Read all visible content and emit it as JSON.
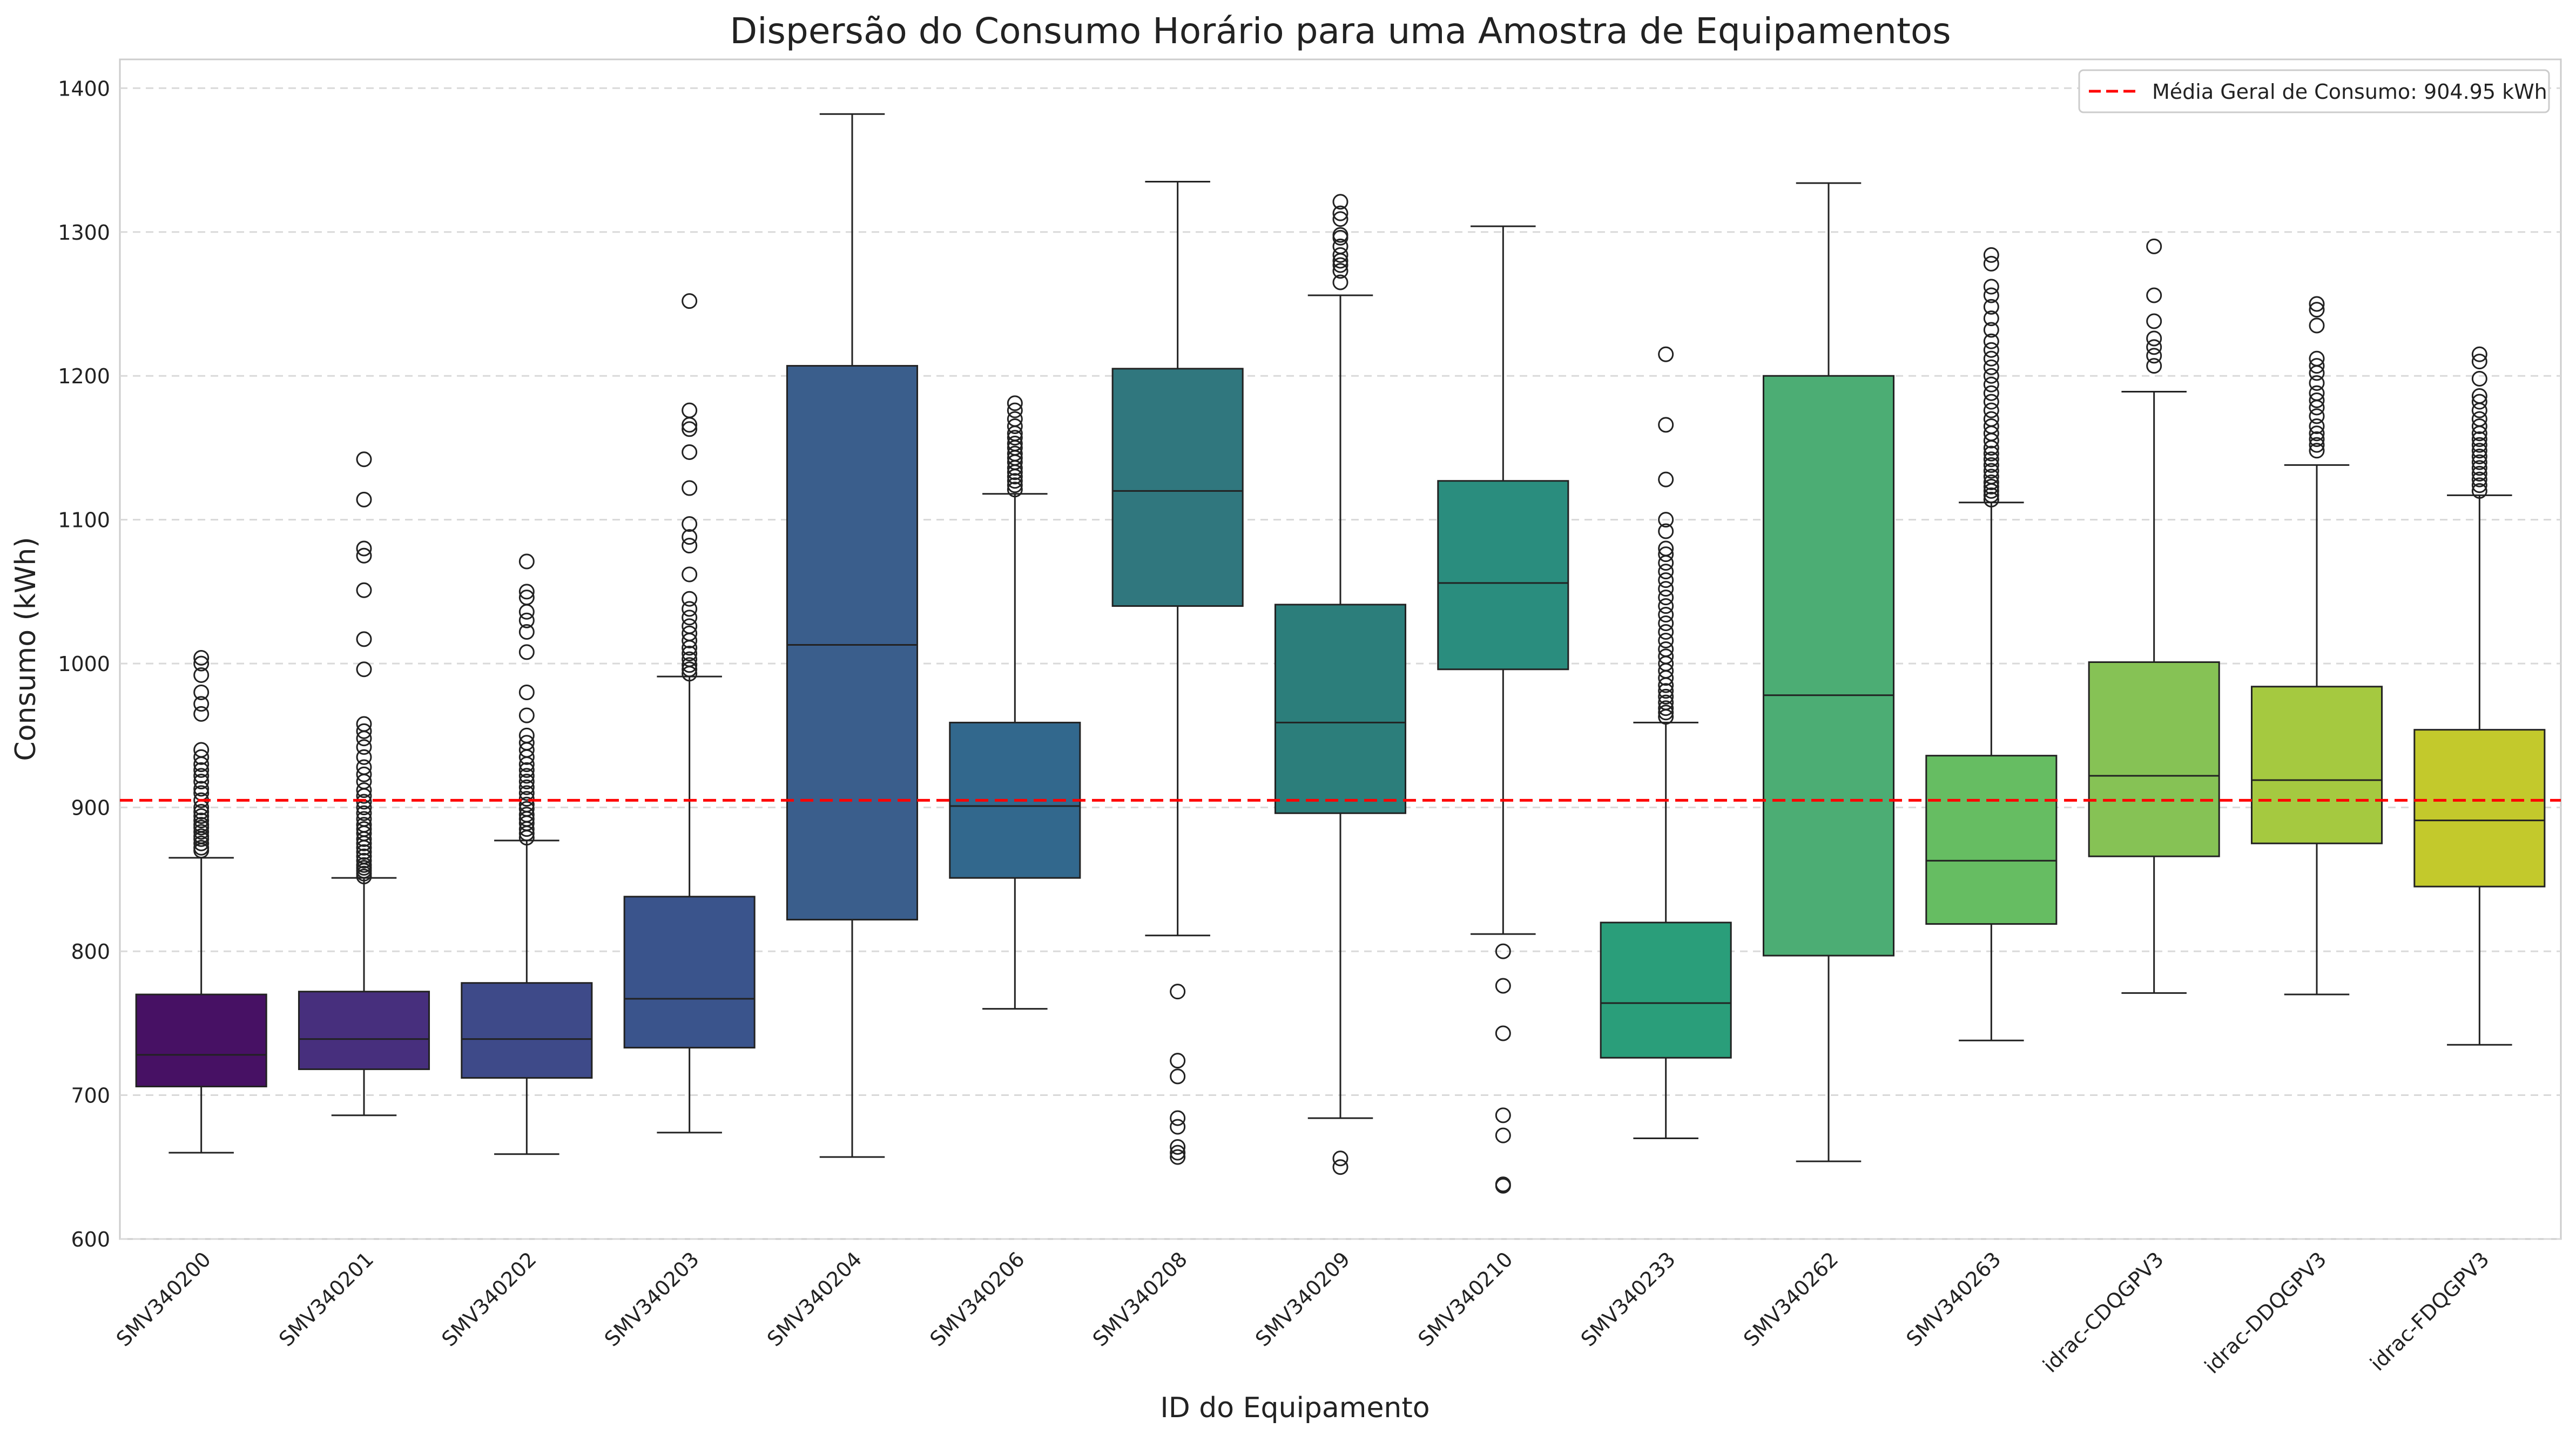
{
  "chart_data": {
    "type": "box",
    "title": "Dispersão do Consumo Horário para uma Amostra de Equipamentos",
    "xlabel": "ID do Equipamento",
    "ylabel": "Consumo (kWh)",
    "ylim": [
      600,
      1420
    ],
    "yticks": [
      600,
      700,
      800,
      900,
      1000,
      1100,
      1200,
      1300,
      1400
    ],
    "grid": "horizontal dashed",
    "legend_position": "top-right",
    "mean_line": {
      "value": 904.95,
      "label": "Média Geral de Consumo: 904.95 kWh",
      "color": "#ff0000",
      "style": "dashed"
    },
    "series": [
      {
        "category": "SMV340200",
        "color": "#471164",
        "whisker_low": 660,
        "q1": 706,
        "median": 728,
        "q3": 770,
        "whisker_high": 865,
        "outliers": [
          870,
          872,
          875,
          878,
          880,
          883,
          886,
          888,
          891,
          894,
          897,
          900,
          905,
          910,
          913,
          918,
          922,
          926,
          930,
          935,
          940,
          965,
          972,
          980,
          992,
          1000,
          1004
        ]
      },
      {
        "category": "SMV340201",
        "color": "#472f7d",
        "whisker_low": 686,
        "q1": 718,
        "median": 739,
        "q3": 772,
        "whisker_high": 851,
        "outliers": [
          852,
          854,
          856,
          858,
          860,
          863,
          866,
          869,
          872,
          875,
          878,
          882,
          885,
          888,
          892,
          896,
          900,
          904,
          908,
          912,
          918,
          923,
          928,
          935,
          942,
          948,
          953,
          958,
          996,
          1017,
          1051,
          1075,
          1080,
          1114,
          1142
        ]
      },
      {
        "category": "SMV340202",
        "color": "#3e4a89",
        "whisker_low": 659,
        "q1": 712,
        "median": 739,
        "q3": 778,
        "whisker_high": 877,
        "outliers": [
          879,
          882,
          885,
          889,
          892,
          895,
          899,
          902,
          906,
          910,
          914,
          918,
          922,
          926,
          930,
          935,
          940,
          945,
          950,
          964,
          980,
          1008,
          1022,
          1030,
          1036,
          1046,
          1050,
          1071
        ]
      },
      {
        "category": "SMV340203",
        "color": "#3a548c",
        "whisker_low": 674,
        "q1": 733,
        "median": 767,
        "q3": 838,
        "whisker_high": 991,
        "outliers": [
          993,
          996,
          999,
          1003,
          1007,
          1011,
          1016,
          1021,
          1026,
          1032,
          1038,
          1045,
          1062,
          1082,
          1088,
          1097,
          1122,
          1147,
          1163,
          1166,
          1176,
          1252
        ]
      },
      {
        "category": "SMV340204",
        "color": "#3a5e8c",
        "whisker_low": 657,
        "q1": 822,
        "median": 1013,
        "q3": 1207,
        "whisker_high": 1382,
        "outliers": []
      },
      {
        "category": "SMV340206",
        "color": "#32688d",
        "whisker_low": 760,
        "q1": 851,
        "median": 901,
        "q3": 959,
        "whisker_high": 1118,
        "outliers": [
          1121,
          1124,
          1127,
          1130,
          1133,
          1136,
          1140,
          1143,
          1146,
          1150,
          1153,
          1157,
          1160,
          1165,
          1170,
          1176,
          1181
        ]
      },
      {
        "category": "SMV340208",
        "color": "#30777e",
        "whisker_low": 811,
        "q1": 1040,
        "median": 1120,
        "q3": 1205,
        "whisker_high": 1335,
        "outliers": [
          657,
          660,
          664,
          678,
          684,
          713,
          724,
          772
        ]
      },
      {
        "category": "SMV340209",
        "color": "#2c7e7b",
        "whisker_low": 684,
        "q1": 896,
        "median": 959,
        "q3": 1041,
        "whisker_high": 1256,
        "outliers": [
          650,
          656,
          1265,
          1273,
          1277,
          1280,
          1284,
          1290,
          1296,
          1298,
          1309,
          1313,
          1321
        ]
      },
      {
        "category": "SMV340210",
        "color": "#2a8d7e",
        "whisker_low": 812,
        "q1": 996,
        "median": 1056,
        "q3": 1127,
        "whisker_high": 1304,
        "outliers": [
          637,
          638,
          672,
          686,
          743,
          776,
          800
        ]
      },
      {
        "category": "SMV340233",
        "color": "#2a9e7a",
        "whisker_low": 670,
        "q1": 726,
        "median": 764,
        "q3": 820,
        "whisker_high": 959,
        "outliers": [
          963,
          966,
          969,
          973,
          977,
          981,
          985,
          990,
          995,
          1000,
          1005,
          1010,
          1016,
          1022,
          1028,
          1034,
          1040,
          1046,
          1052,
          1058,
          1064,
          1070,
          1076,
          1080,
          1092,
          1100,
          1128,
          1166,
          1215
        ]
      },
      {
        "category": "SMV340262",
        "color": "#4cad74",
        "whisker_low": 654,
        "q1": 797,
        "median": 978,
        "q3": 1200,
        "whisker_high": 1334,
        "outliers": []
      },
      {
        "category": "SMV340263",
        "color": "#66bd62",
        "whisker_low": 738,
        "q1": 819,
        "median": 863,
        "q3": 936,
        "whisker_high": 1112,
        "outliers": [
          1114,
          1117,
          1120,
          1123,
          1126,
          1130,
          1134,
          1138,
          1142,
          1146,
          1150,
          1155,
          1160,
          1165,
          1170,
          1176,
          1182,
          1188,
          1194,
          1200,
          1206,
          1212,
          1218,
          1224,
          1232,
          1240,
          1248,
          1256,
          1262,
          1278,
          1284
        ]
      },
      {
        "category": "idrac-CDQGPV3",
        "color": "#86c255",
        "whisker_low": 771,
        "q1": 866,
        "median": 922,
        "q3": 1001,
        "whisker_high": 1189,
        "outliers": [
          1207,
          1214,
          1220,
          1226,
          1238,
          1256,
          1290
        ]
      },
      {
        "category": "idrac-DDQGPV3",
        "color": "#a5c940",
        "whisker_low": 770,
        "q1": 875,
        "median": 919,
        "q3": 984,
        "whisker_high": 1138,
        "outliers": [
          1148,
          1152,
          1156,
          1160,
          1165,
          1172,
          1178,
          1183,
          1188,
          1195,
          1202,
          1207,
          1212,
          1235,
          1246,
          1250
        ]
      },
      {
        "category": "idrac-FDQGPV3",
        "color": "#c3c92c",
        "whisker_low": 735,
        "q1": 845,
        "median": 891,
        "q3": 954,
        "whisker_high": 1117,
        "outliers": [
          1120,
          1124,
          1128,
          1132,
          1136,
          1140,
          1144,
          1148,
          1152,
          1156,
          1160,
          1165,
          1170,
          1176,
          1182,
          1186,
          1198,
          1210,
          1215
        ]
      }
    ]
  }
}
